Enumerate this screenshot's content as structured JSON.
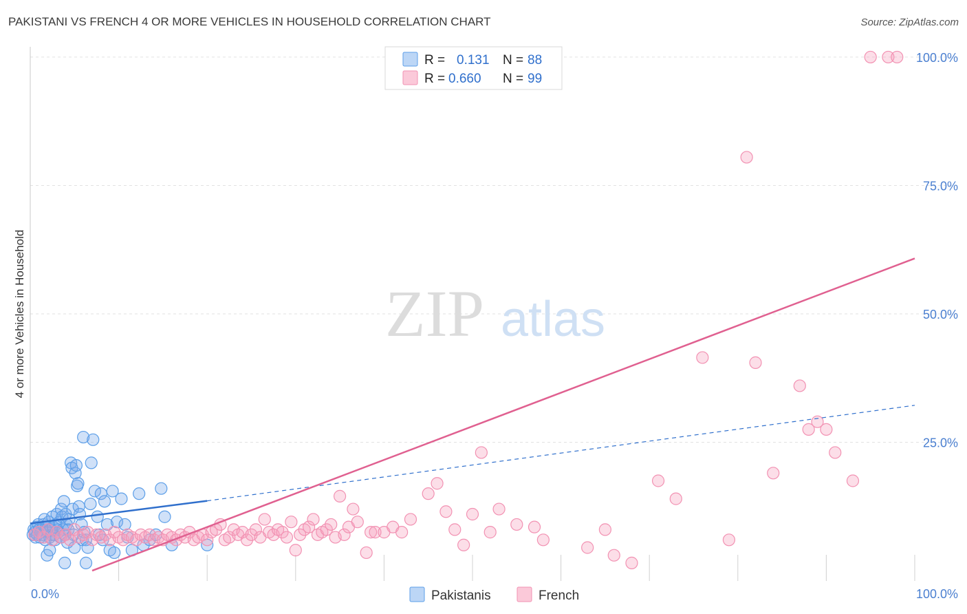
{
  "title": "PAKISTANI VS FRENCH 4 OR MORE VEHICLES IN HOUSEHOLD CORRELATION CHART",
  "source": "Source: ZipAtlas.com",
  "watermark": {
    "zip": "ZIP",
    "atlas": "atlas"
  },
  "colors": {
    "blue": "#5b9ee8",
    "blue_line": "#2f6fcc",
    "pink": "#f291b2",
    "pink_line": "#e06090",
    "axis_text": "#4a7fd0"
  },
  "chart_data": {
    "type": "scatter",
    "title": "PAKISTANI VS FRENCH 4 OR MORE VEHICLES IN HOUSEHOLD CORRELATION CHART",
    "xlabel": "",
    "ylabel": "4 or more Vehicles in Household",
    "xlim": [
      0,
      100
    ],
    "ylim": [
      -2,
      102
    ],
    "x_tick_labels": [
      "0.0%",
      "100.0%"
    ],
    "y_ticks": [
      25,
      50,
      75,
      100
    ],
    "y_tick_labels": [
      "25.0%",
      "50.0%",
      "75.0%",
      "100.0%"
    ],
    "legend": {
      "placement": "top-center",
      "entries": [
        {
          "r_label": "R =",
          "r_value": "0.131",
          "n_label": "N =",
          "n_value": "88"
        },
        {
          "r_label": "R =",
          "r_value": "0.660",
          "n_label": "N =",
          "n_value": "99"
        }
      ]
    },
    "bottom_legend": [
      "Pakistanis",
      "French"
    ],
    "series": [
      {
        "name": "Pakistanis",
        "color": "#5b9ee8",
        "trend": {
          "solid": [
            [
              0,
              9.2
            ],
            [
              20,
              13.6
            ]
          ],
          "dashed": [
            [
              20,
              13.6
            ],
            [
              100,
              32.2
            ]
          ]
        },
        "points": [
          [
            0.3,
            7
          ],
          [
            0.4,
            8
          ],
          [
            0.5,
            7.5
          ],
          [
            0.6,
            6.5
          ],
          [
            0.7,
            8.5
          ],
          [
            0.8,
            7
          ],
          [
            0.9,
            9
          ],
          [
            1,
            8
          ],
          [
            1.1,
            6.5
          ],
          [
            1.2,
            7.5
          ],
          [
            1.3,
            8
          ],
          [
            1.4,
            7
          ],
          [
            1.5,
            9
          ],
          [
            1.6,
            10
          ],
          [
            1.7,
            6
          ],
          [
            1.8,
            8.5
          ],
          [
            2,
            7.5
          ],
          [
            2.1,
            9.5
          ],
          [
            2.2,
            6.5
          ],
          [
            2.3,
            8
          ],
          [
            2.4,
            7
          ],
          [
            2.5,
            10.5
          ],
          [
            2.6,
            8.5
          ],
          [
            2.7,
            7
          ],
          [
            2.8,
            6
          ],
          [
            2.9,
            9
          ],
          [
            3,
            11
          ],
          [
            3.1,
            8
          ],
          [
            3.2,
            7.5
          ],
          [
            3.3,
            9.5
          ],
          [
            3.4,
            6.5
          ],
          [
            3.5,
            12
          ],
          [
            3.6,
            10.5
          ],
          [
            3.7,
            8
          ],
          [
            3.8,
            13.5
          ],
          [
            3.9,
            7
          ],
          [
            4,
            11
          ],
          [
            4.1,
            9
          ],
          [
            4.2,
            5.5
          ],
          [
            4.3,
            8
          ],
          [
            4.4,
            10
          ],
          [
            4.6,
            21
          ],
          [
            4.7,
            20
          ],
          [
            4.8,
            12
          ],
          [
            4.9,
            7
          ],
          [
            5,
            4.5
          ],
          [
            5.1,
            19
          ],
          [
            5.2,
            20.5
          ],
          [
            5.3,
            16.5
          ],
          [
            5.4,
            17
          ],
          [
            5.5,
            12.5
          ],
          [
            5.6,
            11
          ],
          [
            5.8,
            9
          ],
          [
            5.9,
            6
          ],
          [
            6,
            26
          ],
          [
            6.1,
            7.5
          ],
          [
            6.3,
            6
          ],
          [
            6.5,
            4.5
          ],
          [
            6.8,
            13
          ],
          [
            6.9,
            21
          ],
          [
            7.1,
            25.5
          ],
          [
            7.3,
            15.5
          ],
          [
            7.6,
            10.5
          ],
          [
            7.8,
            7
          ],
          [
            8,
            15
          ],
          [
            8.2,
            6
          ],
          [
            8.4,
            13.5
          ],
          [
            8.7,
            9
          ],
          [
            9,
            4
          ],
          [
            9.3,
            15.5
          ],
          [
            9.5,
            3.5
          ],
          [
            9.8,
            9.5
          ],
          [
            10.3,
            14
          ],
          [
            10.7,
            9
          ],
          [
            11,
            6.5
          ],
          [
            11.5,
            4
          ],
          [
            12.3,
            15
          ],
          [
            12.8,
            5
          ],
          [
            13.5,
            6
          ],
          [
            14.2,
            7
          ],
          [
            14.8,
            16
          ],
          [
            15.2,
            10.5
          ],
          [
            1.9,
            3
          ],
          [
            2.2,
            4
          ],
          [
            3.9,
            1.5
          ],
          [
            6.3,
            1.5
          ],
          [
            16,
            5
          ],
          [
            20,
            5
          ]
        ]
      },
      {
        "name": "French",
        "color": "#f291b2",
        "trend": {
          "solid": [
            [
              7,
              0
            ],
            [
              100,
              60.8
            ]
          ]
        },
        "points": [
          [
            0.5,
            7
          ],
          [
            1,
            7.5
          ],
          [
            1.5,
            6.5
          ],
          [
            2,
            8
          ],
          [
            2.5,
            6
          ],
          [
            3,
            7.5
          ],
          [
            3.5,
            6.5
          ],
          [
            4,
            7
          ],
          [
            4.5,
            6
          ],
          [
            5,
            8
          ],
          [
            5.5,
            6.5
          ],
          [
            6,
            7
          ],
          [
            6.5,
            7.5
          ],
          [
            7,
            6
          ],
          [
            7.5,
            7
          ],
          [
            8,
            6.5
          ],
          [
            8.5,
            7
          ],
          [
            9,
            6
          ],
          [
            9.5,
            7.5
          ],
          [
            10,
            6.5
          ],
          [
            10.5,
            6
          ],
          [
            11,
            7
          ],
          [
            11.5,
            6.5
          ],
          [
            12,
            6
          ],
          [
            12.5,
            7
          ],
          [
            13,
            6.5
          ],
          [
            13.5,
            7
          ],
          [
            14,
            6
          ],
          [
            14.5,
            6.5
          ],
          [
            15,
            6
          ],
          [
            15.5,
            7
          ],
          [
            16,
            6.5
          ],
          [
            16.5,
            6
          ],
          [
            17,
            7
          ],
          [
            17.5,
            6.5
          ],
          [
            18,
            7.5
          ],
          [
            18.5,
            6
          ],
          [
            19,
            6.5
          ],
          [
            19.5,
            7
          ],
          [
            20,
            6
          ],
          [
            20.5,
            7.5
          ],
          [
            21,
            8
          ],
          [
            21.5,
            9
          ],
          [
            22,
            6
          ],
          [
            22.5,
            6.5
          ],
          [
            23,
            8
          ],
          [
            23.5,
            7
          ],
          [
            24,
            7.5
          ],
          [
            24.5,
            6
          ],
          [
            25,
            7
          ],
          [
            25.5,
            8
          ],
          [
            26,
            6.5
          ],
          [
            26.5,
            10
          ],
          [
            27,
            7.5
          ],
          [
            27.5,
            7
          ],
          [
            28,
            8
          ],
          [
            28.5,
            7.5
          ],
          [
            29,
            6.5
          ],
          [
            29.5,
            9.5
          ],
          [
            30,
            4
          ],
          [
            30.5,
            7
          ],
          [
            31,
            8
          ],
          [
            31.5,
            8.5
          ],
          [
            32,
            10
          ],
          [
            32.5,
            7
          ],
          [
            33,
            7.5
          ],
          [
            33.5,
            8
          ],
          [
            34,
            9
          ],
          [
            34.5,
            6.5
          ],
          [
            35,
            14.5
          ],
          [
            35.5,
            7
          ],
          [
            36,
            8.5
          ],
          [
            36.5,
            12
          ],
          [
            37,
            9.5
          ],
          [
            38,
            3.5
          ],
          [
            38.5,
            7.5
          ],
          [
            39,
            7.5
          ],
          [
            40,
            7.5
          ],
          [
            41,
            8.5
          ],
          [
            42,
            7.5
          ],
          [
            43,
            10
          ],
          [
            45,
            15
          ],
          [
            46,
            17
          ],
          [
            47,
            11.5
          ],
          [
            48,
            8
          ],
          [
            49,
            5
          ],
          [
            50,
            11
          ],
          [
            51,
            23
          ],
          [
            52,
            7.5
          ],
          [
            53,
            12
          ],
          [
            55,
            9
          ],
          [
            57,
            8.5
          ],
          [
            58,
            6
          ],
          [
            63,
            4.5
          ],
          [
            65,
            8
          ],
          [
            66,
            3
          ],
          [
            68,
            1.5
          ],
          [
            71,
            17.5
          ],
          [
            73,
            14
          ],
          [
            76,
            41.5
          ],
          [
            79,
            6
          ],
          [
            81,
            80.5
          ],
          [
            82,
            40.5
          ],
          [
            84,
            19
          ],
          [
            87,
            36
          ],
          [
            88,
            27.5
          ],
          [
            89,
            29
          ],
          [
            90,
            27.5
          ],
          [
            91,
            23
          ],
          [
            93,
            17.5
          ],
          [
            95,
            100
          ],
          [
            97,
            100
          ],
          [
            98,
            100
          ]
        ]
      }
    ]
  }
}
